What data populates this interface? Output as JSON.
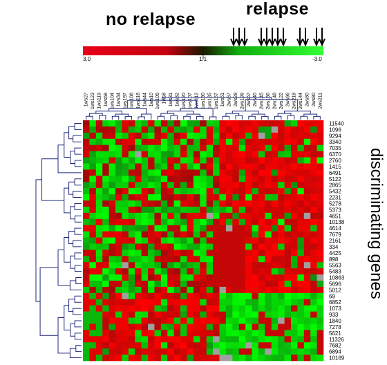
{
  "labels": {
    "no_relapse": "no relapse",
    "relapse": "relapse",
    "side": "discriminating genes"
  },
  "color_scale": {
    "min_label": "3.0",
    "mid_label": "1:1",
    "max_label": "-3.0",
    "colors": {
      "low": "#ff0000",
      "high": "#00ff00"
    }
  },
  "samples": [
    "1ws27",
    "1ws123",
    "1ws119",
    "1ws68",
    "1ws104",
    "1ws34",
    "1ws197",
    "1ws108",
    "1ws118",
    "1ws44",
    "1ws10",
    "1ws105",
    "1ws8",
    "1ws31",
    "1ws32",
    "1ws120",
    "1ws107",
    "1ws112",
    "1ws190",
    "1ws185",
    "1ws167",
    "1ws61",
    "2ws67",
    "2ws28",
    "2ws199",
    "2ws67",
    "2ws40",
    "2ws145",
    "2ws156",
    "2ws148",
    "2ws122",
    "2ws96",
    "2ws218",
    "2ws144",
    "2ws80",
    "2ws80",
    "2ws211"
  ],
  "genes": [
    "11540",
    "1096",
    "9294",
    "3340",
    "7035",
    "6370",
    "2760",
    "1415",
    "6491",
    "5122",
    "2865",
    "5432",
    "2231",
    "5278",
    "5373",
    "4651",
    "10138",
    "4614",
    "7679",
    "2161",
    "334",
    "4425",
    "898",
    "5563",
    "5483",
    "10863",
    "5696",
    "5012",
    "69",
    "6852",
    "1073",
    "933",
    "1840",
    "7278",
    "5621",
    "11326",
    "7682",
    "6894",
    "10169"
  ]
}
